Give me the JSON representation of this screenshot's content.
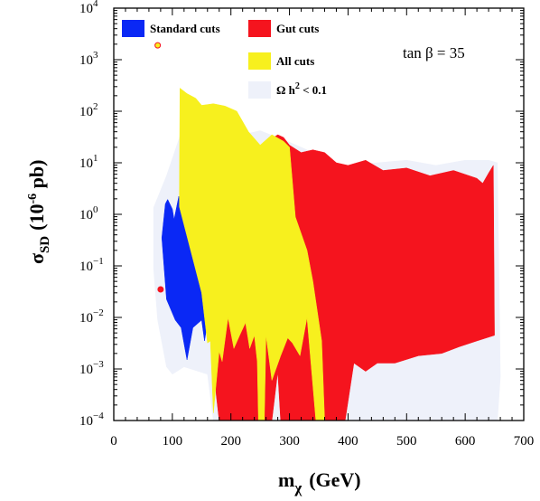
{
  "chart_data": {
    "type": "area",
    "x_axis": {
      "ticks": [
        0,
        100,
        200,
        300,
        400,
        500,
        600,
        700
      ],
      "range": [
        0,
        700
      ]
    },
    "y_axis": {
      "scale": "log",
      "range": [
        0.0001,
        10000
      ],
      "ticks": [
        {
          "value": 0.0001,
          "base": "10",
          "exp": "−4"
        },
        {
          "value": 0.001,
          "base": "10",
          "exp": "−3"
        },
        {
          "value": 0.01,
          "base": "10",
          "exp": "−2"
        },
        {
          "value": 0.1,
          "base": "10",
          "exp": "−1"
        },
        {
          "value": 1,
          "base": "10",
          "exp": "0"
        },
        {
          "value": 10,
          "base": "10",
          "exp": "1"
        },
        {
          "value": 100,
          "base": "10",
          "exp": "2"
        },
        {
          "value": 1000,
          "base": "10",
          "exp": "3"
        },
        {
          "value": 10000,
          "base": "10",
          "exp": "4"
        }
      ]
    },
    "xlabel": {
      "main": "m",
      "sub": "χ",
      "units": "(GeV)"
    },
    "ylabel": {
      "main": "σ",
      "sub": "SD",
      "units_pre": "(10",
      "units_sup": "-6",
      "units_post": " pb)"
    },
    "annotation": "tan β = 35",
    "legend_placement": "top",
    "series": [
      {
        "name": "Ω h² < 0.1",
        "legend": {
          "main": "Ω h",
          "sup": "2",
          "tail": " < 0.1"
        },
        "color": "#eef1fa",
        "polygon": [
          [
            68,
            1.35
          ],
          [
            90,
            5.6
          ],
          [
            120,
            56
          ],
          [
            150,
            50
          ],
          [
            160,
            28
          ],
          [
            170,
            6.3
          ],
          [
            200,
            31
          ],
          [
            250,
            42
          ],
          [
            300,
            25
          ],
          [
            330,
            17.8
          ],
          [
            350,
            11.2
          ],
          [
            400,
            8.9
          ],
          [
            450,
            10
          ],
          [
            500,
            11.2
          ],
          [
            550,
            8.9
          ],
          [
            600,
            11.2
          ],
          [
            640,
            11.2
          ],
          [
            655,
            10
          ],
          [
            660,
            0.00071
          ],
          [
            655,
            0.0001
          ],
          [
            170,
            0.0001
          ],
          [
            160,
            0.00079
          ],
          [
            120,
            0.0011
          ],
          [
            100,
            0.00079
          ],
          [
            90,
            0.0011
          ],
          [
            75,
            0.0089
          ],
          [
            68,
            0.089
          ]
        ]
      },
      {
        "name": "Gut cuts",
        "color": "#f5141e",
        "polygon": [
          [
            165,
            0.011
          ],
          [
            170,
            0.15
          ],
          [
            180,
            0.56
          ],
          [
            200,
            0.79
          ],
          [
            220,
            2.24
          ],
          [
            260,
            25
          ],
          [
            280,
            35
          ],
          [
            290,
            31
          ],
          [
            300,
            22
          ],
          [
            320,
            15.8
          ],
          [
            340,
            17.8
          ],
          [
            360,
            15.8
          ],
          [
            380,
            10
          ],
          [
            400,
            8.9
          ],
          [
            430,
            11.2
          ],
          [
            460,
            7.1
          ],
          [
            500,
            7.9
          ],
          [
            540,
            5.6
          ],
          [
            580,
            7.1
          ],
          [
            620,
            5.0
          ],
          [
            630,
            4.0
          ],
          [
            640,
            6.3
          ],
          [
            648,
            8.9
          ],
          [
            650,
            0.0045
          ],
          [
            620,
            0.0035
          ],
          [
            590,
            0.0027
          ],
          [
            560,
            0.002
          ],
          [
            520,
            0.0018
          ],
          [
            480,
            0.0013
          ],
          [
            450,
            0.0013
          ],
          [
            430,
            0.0009
          ],
          [
            410,
            0.0013
          ],
          [
            395,
            0.0001
          ],
          [
            345,
            0.0001
          ],
          [
            295,
            0.0001
          ],
          [
            285,
            0.0001
          ],
          [
            280,
            0.00089
          ],
          [
            270,
            0.0001
          ],
          [
            180,
            0.0001
          ],
          [
            175,
            0.00031
          ]
        ]
      },
      {
        "name": "Standard cuts",
        "color": "#0a28f5",
        "polygon": [
          [
            82,
            0.35
          ],
          [
            88,
            1.6
          ],
          [
            92,
            1.95
          ],
          [
            100,
            1.26
          ],
          [
            103,
            0.79
          ],
          [
            111,
            2.24
          ],
          [
            113,
            1.41
          ],
          [
            135,
            1.0
          ],
          [
            160,
            0.26
          ],
          [
            170,
            0.11
          ],
          [
            180,
            0.0055
          ],
          [
            165,
            0.0178
          ],
          [
            155,
            0.0035
          ],
          [
            150,
            0.0089
          ],
          [
            135,
            0.0063
          ],
          [
            125,
            0.0015
          ],
          [
            115,
            0.0063
          ],
          [
            105,
            0.0089
          ],
          [
            90,
            0.0224
          ]
        ]
      },
      {
        "name": "All cuts",
        "color": "#f7f01e",
        "polygon": [
          [
            112,
            1.41
          ],
          [
            113,
            280
          ],
          [
            125,
            220
          ],
          [
            140,
            178
          ],
          [
            150,
            130
          ],
          [
            170,
            140
          ],
          [
            190,
            126
          ],
          [
            210,
            100
          ],
          [
            230,
            40
          ],
          [
            250,
            22
          ],
          [
            270,
            35
          ],
          [
            290,
            26
          ],
          [
            300,
            20
          ],
          [
            310,
            0.89
          ],
          [
            330,
            0.2
          ],
          [
            340,
            0.05
          ],
          [
            355,
            0.0035
          ],
          [
            360,
            0.0001
          ],
          [
            345,
            0.0001
          ],
          [
            330,
            0.01
          ],
          [
            318,
            0.0018
          ],
          [
            305,
            0.0032
          ],
          [
            297,
            0.004
          ],
          [
            285,
            0.0018
          ],
          [
            270,
            0.0006
          ],
          [
            260,
            0.0045
          ],
          [
            257,
            0.0001
          ],
          [
            247,
            0.0001
          ],
          [
            245,
            0.0014
          ],
          [
            240,
            0.0045
          ],
          [
            232,
            0.0025
          ],
          [
            225,
            0.0079
          ],
          [
            215,
            0.0045
          ],
          [
            205,
            0.0025
          ],
          [
            195,
            0.01
          ],
          [
            185,
            0.0014
          ],
          [
            180,
            0.0022
          ],
          [
            170,
            0.00014
          ],
          [
            165,
            0.0035
          ],
          [
            160,
            0.0032
          ],
          [
            150,
            0.03
          ]
        ]
      }
    ],
    "points": [
      {
        "x": 75,
        "y": 1900,
        "color": "#f7f01e",
        "stroke": "#f5141e"
      },
      {
        "x": 80,
        "y": 0.035,
        "color": "#f5141e",
        "stroke": "#f5141e"
      }
    ],
    "legend_items": [
      {
        "label": "Standard cuts",
        "color": "#0a28f5"
      },
      {
        "label": "Gut cuts",
        "color": "#f5141e"
      },
      {
        "label": "All cuts",
        "color": "#f7f01e"
      }
    ]
  }
}
